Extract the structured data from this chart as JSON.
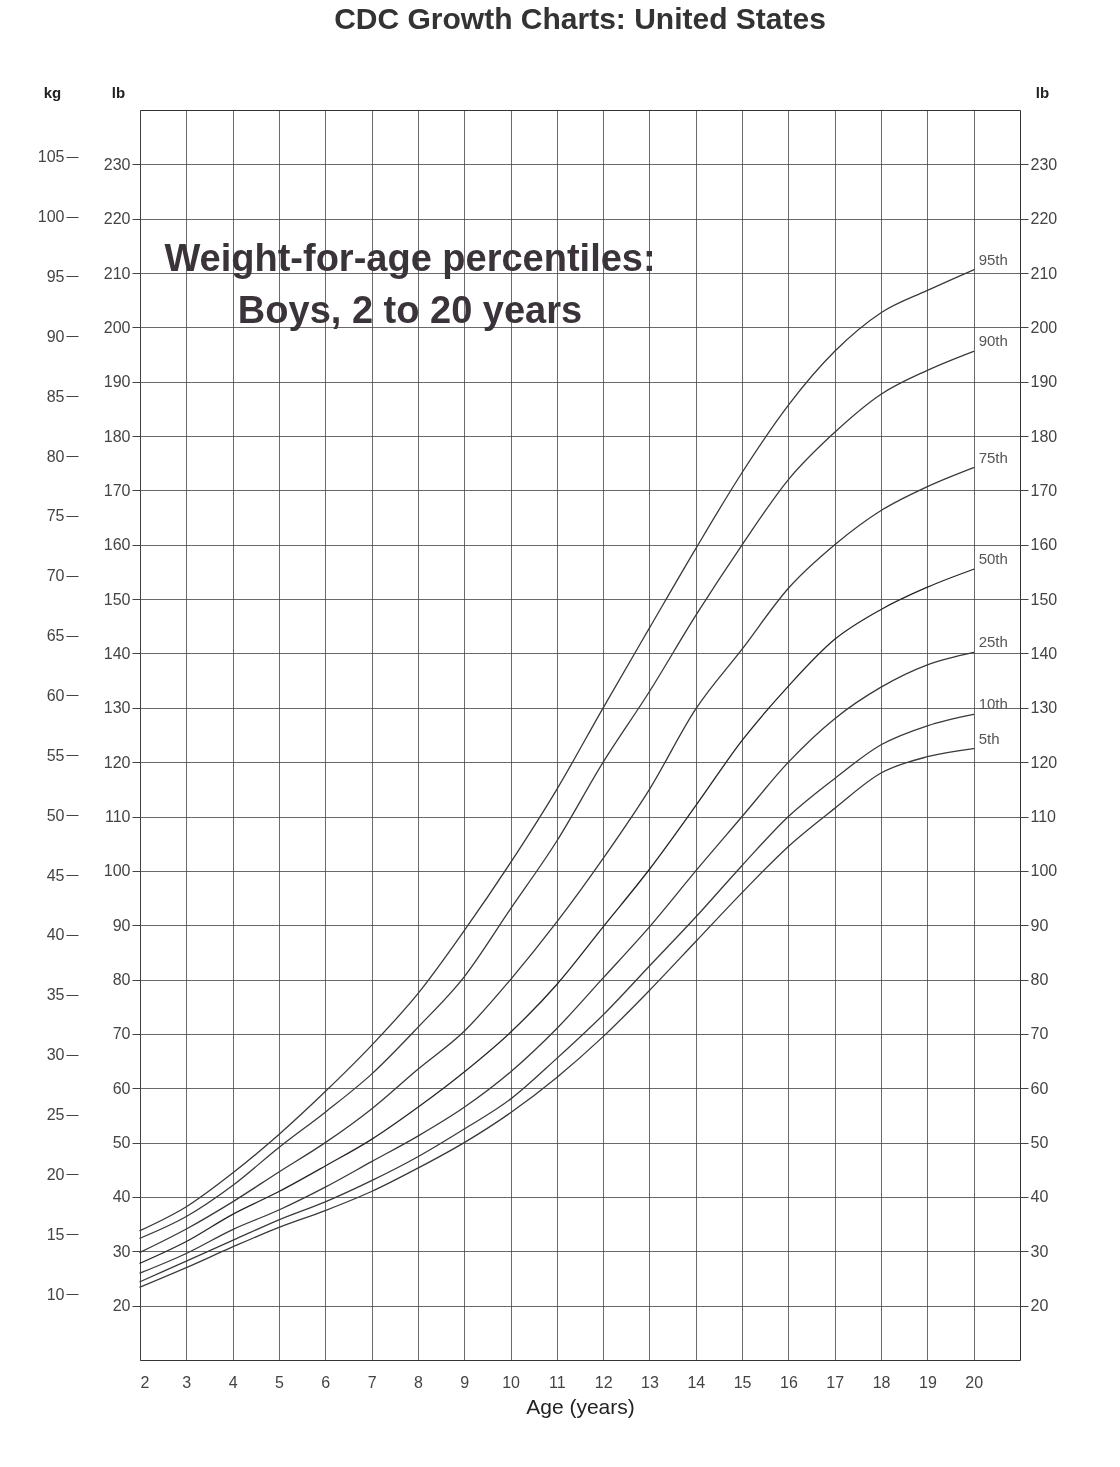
{
  "chart_data": {
    "type": "line",
    "title": "CDC Growth Charts: United States",
    "xlabel": "Age (years)",
    "ylabel": "lb",
    "y2label": "kg",
    "y3label": "lb",
    "annotations": [
      "Weight-for-age percentiles:",
      "Boys, 2 to 20 years"
    ],
    "x": [
      2,
      3,
      4,
      5,
      6,
      7,
      8,
      9,
      10,
      11,
      12,
      13,
      14,
      15,
      16,
      17,
      18,
      19,
      20
    ],
    "series": [
      {
        "name": "95th",
        "color": "#3a3a3a",
        "values": [
          33.8,
          38.2,
          44.4,
          51.5,
          59.4,
          67.9,
          77.4,
          89,
          101.5,
          115,
          130,
          144.7,
          159.3,
          173.3,
          185.7,
          195.6,
          202.7,
          206.8,
          210.6
        ]
      },
      {
        "name": "90th",
        "color": "#3a3a3a",
        "values": [
          32.4,
          36.4,
          42.1,
          49.1,
          55.6,
          62.6,
          71.2,
          80.5,
          93,
          105.5,
          120,
          133,
          147,
          160,
          172,
          180.7,
          187.7,
          192.1,
          195.6
        ]
      },
      {
        "name": "75th",
        "color": "#3a3a3a",
        "values": [
          29.8,
          34.1,
          39.1,
          44.6,
          50,
          56.2,
          63.5,
          70.5,
          80,
          90.6,
          102.3,
          115,
          129.8,
          140.8,
          152,
          160,
          166.3,
          170.7,
          174.2
        ]
      },
      {
        "name": "50th",
        "color": "#2a2328",
        "values": [
          27.8,
          31.8,
          36.8,
          41,
          45.7,
          50.6,
          56.5,
          63,
          70.3,
          79.1,
          89.7,
          100.3,
          112,
          124,
          134,
          142.6,
          148.1,
          152.2,
          155.5
        ]
      },
      {
        "name": "25th",
        "color": "#3a3a3a",
        "values": [
          26,
          29.6,
          34,
          37.6,
          41.8,
          46.5,
          51.2,
          56.5,
          63,
          71,
          80.3,
          89.7,
          100,
          110,
          120,
          128,
          133.8,
          137.9,
          140.2
        ]
      },
      {
        "name": "10th",
        "color": "#3a3a3a",
        "values": [
          24.4,
          28.2,
          32,
          35.8,
          39.1,
          43,
          47.4,
          52.5,
          58,
          65.5,
          73.5,
          82.5,
          91.5,
          101,
          110,
          117,
          123.2,
          126.7,
          128.8
        ]
      },
      {
        "name": "5th",
        "color": "#3a3a3a",
        "values": [
          23.4,
          27,
          30.8,
          34.4,
          37.5,
          41,
          45.3,
          50,
          55.5,
          62,
          69.5,
          78,
          87,
          96,
          104.5,
          111.5,
          118,
          121,
          122.5
        ]
      }
    ],
    "xlim": [
      2,
      21
    ],
    "xticks": [
      2,
      3,
      4,
      5,
      6,
      7,
      8,
      9,
      10,
      11,
      12,
      13,
      14,
      15,
      16,
      17,
      18,
      19,
      20
    ],
    "ylim": [
      10,
      240
    ],
    "yticks": [
      20,
      30,
      40,
      50,
      60,
      70,
      80,
      90,
      100,
      110,
      120,
      130,
      140,
      150,
      160,
      170,
      180,
      190,
      200,
      210,
      220,
      230
    ],
    "y2lim": [
      4.5,
      108.9
    ],
    "y2ticks": [
      10,
      15,
      20,
      25,
      30,
      35,
      40,
      45,
      50,
      55,
      60,
      65,
      70,
      75,
      80,
      85,
      90,
      95,
      100,
      105
    ],
    "y3lim": [
      10,
      240
    ],
    "y3ticks": [
      20,
      30,
      40,
      50,
      60,
      70,
      80,
      90,
      100,
      110,
      120,
      130,
      140,
      150,
      160,
      170,
      180,
      190,
      200,
      210,
      220,
      230
    ],
    "grid": true,
    "marker": "none",
    "line_style": "solid"
  }
}
